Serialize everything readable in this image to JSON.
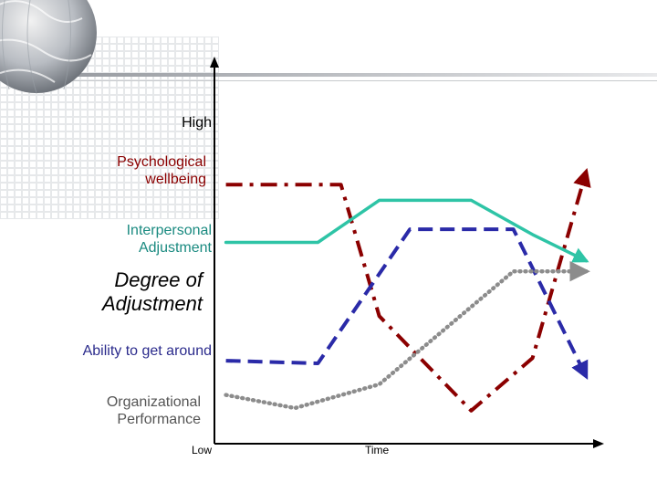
{
  "colors": {
    "psychological": "#8b0000",
    "interpersonal": "#2ec4a6",
    "ability": "#2a2aa8",
    "organizational": "#8c8c8c"
  },
  "labels": {
    "high": "High",
    "psychological": [
      "Psychological",
      "wellbeing"
    ],
    "interpersonal": [
      "Interpersonal",
      "Adjustment"
    ],
    "degree": [
      "Degree of",
      "Adjustment"
    ],
    "ability": "Ability to get around",
    "organizational": [
      "Organizational",
      "Performance"
    ],
    "low": "Low",
    "time": "Time"
  },
  "chart_data": {
    "type": "line",
    "title": "",
    "xlabel": "Time",
    "ylabel": "Degree of Adjustment",
    "xlim": [
      0,
      100
    ],
    "ylim": [
      0,
      100
    ],
    "grid": false,
    "series": [
      {
        "name": "Psychological wellbeing",
        "style": "dash-dot",
        "arrow": true,
        "points": [
          [
            3,
            93
          ],
          [
            33,
            93
          ],
          [
            43,
            43
          ],
          [
            67,
            7
          ],
          [
            83,
            27
          ],
          [
            97,
            98
          ]
        ]
      },
      {
        "name": "Interpersonal Adjustment",
        "style": "solid",
        "arrow": true,
        "points": [
          [
            3,
            71
          ],
          [
            27,
            71
          ],
          [
            43,
            87
          ],
          [
            67,
            87
          ],
          [
            83,
            74
          ],
          [
            97,
            64
          ]
        ]
      },
      {
        "name": "Ability to get around",
        "style": "dashed",
        "arrow": true,
        "points": [
          [
            3,
            26
          ],
          [
            27,
            25
          ],
          [
            51,
            76
          ],
          [
            78,
            76
          ],
          [
            97,
            20
          ]
        ]
      },
      {
        "name": "Organizational Performance",
        "style": "dotted",
        "arrow": true,
        "points": [
          [
            3,
            13
          ],
          [
            21,
            8
          ],
          [
            43,
            17
          ],
          [
            78,
            60
          ],
          [
            97,
            60
          ]
        ]
      }
    ]
  }
}
